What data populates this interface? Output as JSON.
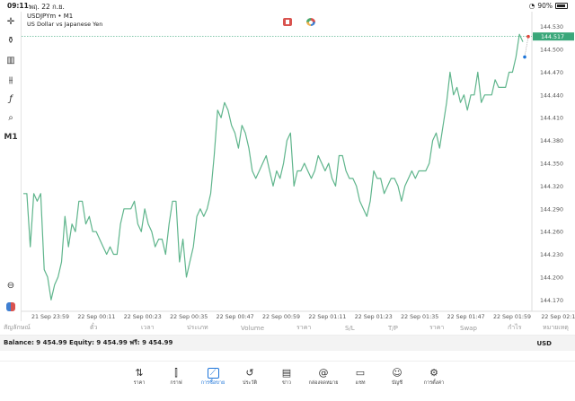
{
  "status": {
    "time": "09:11",
    "date": "พฤ. 22 ก.ย.",
    "battery": "90%"
  },
  "symbol": {
    "title": "USDJPYm • M1",
    "subtitle": "US Dollar vs Japanese Yen",
    "current_price": "144.517"
  },
  "toolbar": {
    "timeframe": "M1"
  },
  "chart_data": {
    "type": "line",
    "color": "#5fb58c",
    "y_ticks": [
      "144.530",
      "144.500",
      "144.470",
      "144.440",
      "144.410",
      "144.380",
      "144.350",
      "144.320",
      "144.290",
      "144.260",
      "144.230",
      "144.200",
      "144.170"
    ],
    "x_ticks": [
      "21 Sep 23:59",
      "22 Sep 00:11",
      "22 Sep 00:23",
      "22 Sep 00:35",
      "22 Sep 00:47",
      "22 Sep 00:59",
      "22 Sep 01:11",
      "22 Sep 01:23",
      "22 Sep 01:35",
      "22 Sep 01:47",
      "22 Sep 01:59",
      "22 Sep 02:1"
    ],
    "ylim": [
      144.155,
      144.545
    ],
    "values": [
      144.31,
      144.31,
      144.24,
      144.31,
      144.3,
      144.31,
      144.21,
      144.2,
      144.17,
      144.19,
      144.2,
      144.22,
      144.28,
      144.24,
      144.27,
      144.26,
      144.3,
      144.3,
      144.27,
      144.28,
      144.26,
      144.26,
      144.25,
      144.24,
      144.23,
      144.24,
      144.23,
      144.23,
      144.27,
      144.29,
      144.29,
      144.29,
      144.3,
      144.27,
      144.26,
      144.29,
      144.27,
      144.26,
      144.24,
      144.25,
      144.25,
      144.23,
      144.27,
      144.3,
      144.3,
      144.22,
      144.25,
      144.2,
      144.22,
      144.24,
      144.28,
      144.29,
      144.28,
      144.29,
      144.31,
      144.36,
      144.42,
      144.41,
      144.43,
      144.42,
      144.4,
      144.39,
      144.37,
      144.4,
      144.39,
      144.37,
      144.34,
      144.33,
      144.34,
      144.35,
      144.36,
      144.34,
      144.32,
      144.34,
      144.33,
      144.35,
      144.38,
      144.39,
      144.32,
      144.34,
      144.34,
      144.35,
      144.34,
      144.33,
      144.34,
      144.36,
      144.35,
      144.34,
      144.35,
      144.33,
      144.32,
      144.36,
      144.36,
      144.34,
      144.33,
      144.33,
      144.32,
      144.3,
      144.29,
      144.28,
      144.3,
      144.34,
      144.33,
      144.33,
      144.31,
      144.32,
      144.33,
      144.33,
      144.32,
      144.3,
      144.32,
      144.33,
      144.34,
      144.33,
      144.34,
      144.34,
      144.34,
      144.35,
      144.38,
      144.39,
      144.37,
      144.4,
      144.43,
      144.47,
      144.44,
      144.45,
      144.43,
      144.44,
      144.42,
      144.44,
      144.44,
      144.47,
      144.43,
      144.44,
      144.44,
      144.44,
      144.46,
      144.45,
      144.45,
      144.45,
      144.47,
      144.47,
      144.49,
      144.52,
      144.51
    ],
    "markers": [
      {
        "value": 144.49,
        "color": "#1c74d9"
      },
      {
        "value": 144.517,
        "color": "#e0453a"
      }
    ]
  },
  "trade_headers": [
    "สัญลักษณ์",
    "ตั๋ว",
    "เวลา",
    "ประเภท",
    "Volume",
    "ราคา",
    "S/L",
    "T/P",
    "ราคา",
    "Swap",
    "กำไร",
    "หมายเหตุ"
  ],
  "balance": {
    "text": "Balance: 9 454.99 Equity: 9 454.99 ฟรี: 9 454.99",
    "currency": "USD"
  },
  "nav": [
    {
      "label": "ราคา",
      "icon": "swap-arrows-icon"
    },
    {
      "label": "กราฟ",
      "icon": "candles-icon"
    },
    {
      "label": "การซื้อขาย",
      "icon": "trend-chart-icon",
      "active": true
    },
    {
      "label": "ประวัติ",
      "icon": "history-icon"
    },
    {
      "label": "ข่าว",
      "icon": "news-icon"
    },
    {
      "label": "กล่องจดหมาย",
      "icon": "at-mail-icon"
    },
    {
      "label": "แชท",
      "icon": "chat-icon"
    },
    {
      "label": "บัญชี",
      "icon": "account-icon"
    },
    {
      "label": "การตั้งค่า",
      "icon": "gear-icon"
    }
  ]
}
